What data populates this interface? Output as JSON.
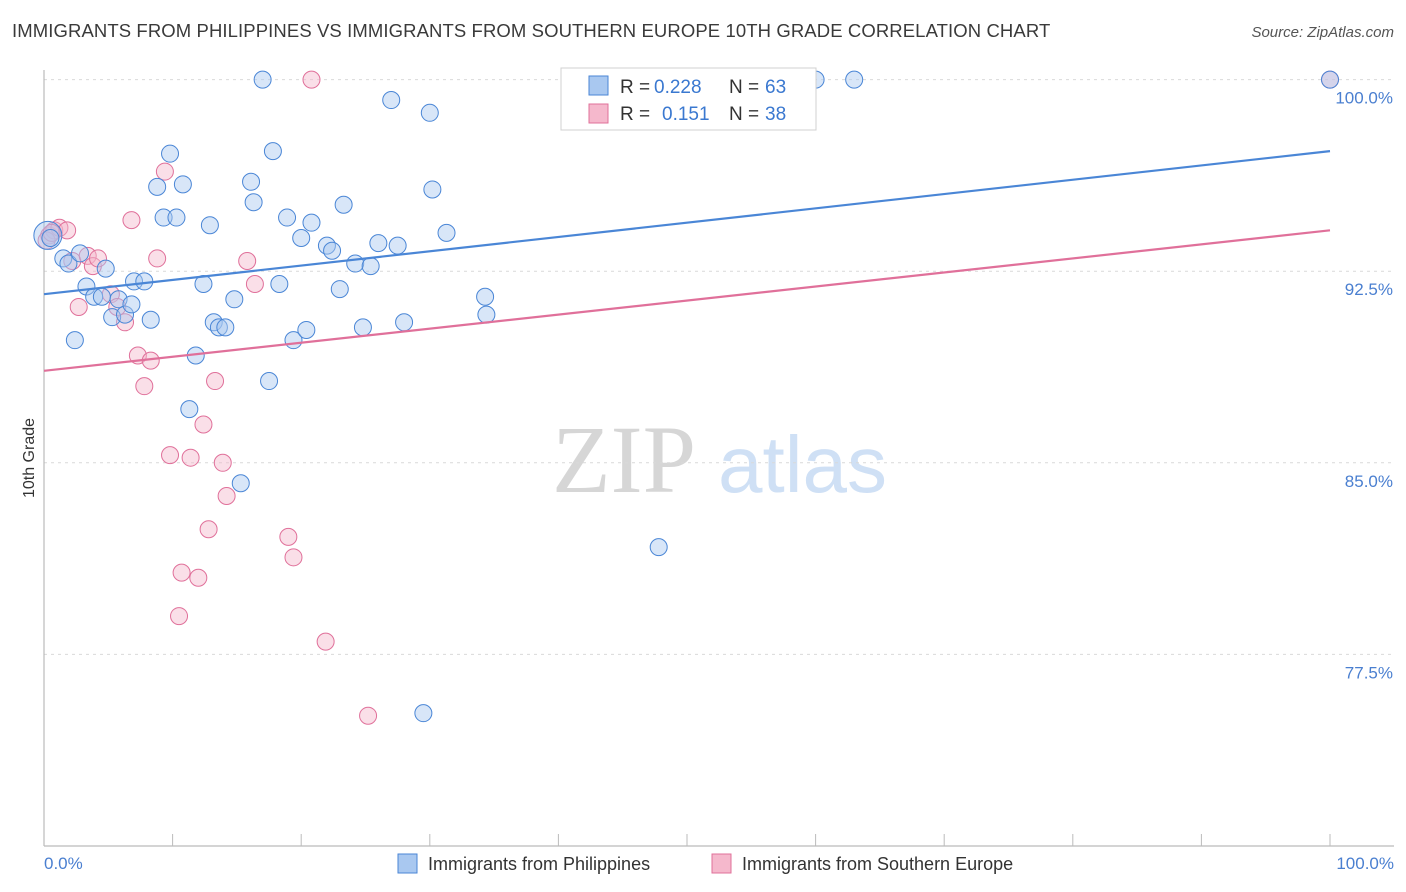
{
  "title": "IMMIGRANTS FROM PHILIPPINES VS IMMIGRANTS FROM SOUTHERN EUROPE 10TH GRADE CORRELATION CHART",
  "source": "Source: ZipAtlas.com",
  "watermark": {
    "zip": "ZIP",
    "atlas": "atlas"
  },
  "colors": {
    "blue": "#4a86d6",
    "blue_fill": "#a9c8f0",
    "pink": "#e0709a",
    "pink_fill": "#f5b8cc",
    "grid": "#d9d9d9"
  },
  "legend": [
    {
      "r_label": "R =",
      "r_value": "0.228",
      "n_label": "N =",
      "n_value": "63"
    },
    {
      "r_label": "R =",
      "r_value": "0.151",
      "n_label": "N =",
      "n_value": "38"
    }
  ],
  "chart_data": {
    "type": "scatter",
    "title": "IMMIGRANTS FROM PHILIPPINES VS IMMIGRANTS FROM SOUTHERN EUROPE 10TH GRADE CORRELATION CHART",
    "xlabel": "",
    "ylabel": "10th Grade",
    "xlim": [
      0,
      100
    ],
    "ylim": [
      70.0,
      100.7
    ],
    "x_tick_labels": [
      "0.0%",
      "100.0%"
    ],
    "y_ticks": [
      {
        "value": 77.5,
        "label": "77.5%"
      },
      {
        "value": 85.0,
        "label": "85.0%"
      },
      {
        "value": 92.5,
        "label": "92.5%"
      },
      {
        "value": 100.0,
        "label": "100.0%"
      }
    ],
    "grid": "horizontal dashed",
    "legend_position": "top-center",
    "series": [
      {
        "name": "Immigrants from Philippines",
        "color": "#4a86d6",
        "trend": {
          "x": [
            0,
            100
          ],
          "y": [
            91.6,
            97.2
          ]
        },
        "points": [
          [
            0.3,
            93.9
          ],
          [
            0.5,
            93.8
          ],
          [
            1.5,
            93.0
          ],
          [
            1.9,
            92.8
          ],
          [
            2.4,
            89.8
          ],
          [
            2.8,
            93.2
          ],
          [
            3.3,
            91.9
          ],
          [
            3.9,
            91.5
          ],
          [
            4.5,
            91.5
          ],
          [
            4.8,
            92.6
          ],
          [
            5.3,
            90.7
          ],
          [
            5.8,
            91.4
          ],
          [
            6.3,
            90.8
          ],
          [
            6.8,
            91.2
          ],
          [
            7.0,
            92.1
          ],
          [
            7.8,
            92.1
          ],
          [
            8.3,
            90.6
          ],
          [
            8.8,
            95.8
          ],
          [
            9.3,
            94.6
          ],
          [
            9.8,
            97.1
          ],
          [
            10.3,
            94.6
          ],
          [
            10.8,
            95.9
          ],
          [
            11.3,
            87.1
          ],
          [
            11.8,
            89.2
          ],
          [
            12.4,
            92.0
          ],
          [
            12.9,
            94.3
          ],
          [
            13.2,
            90.5
          ],
          [
            13.6,
            90.3
          ],
          [
            14.1,
            90.3
          ],
          [
            14.8,
            91.4
          ],
          [
            15.3,
            84.2
          ],
          [
            16.1,
            96.0
          ],
          [
            16.3,
            95.2
          ],
          [
            17.0,
            100.0
          ],
          [
            17.5,
            88.2
          ],
          [
            17.8,
            97.2
          ],
          [
            18.3,
            92.0
          ],
          [
            18.9,
            94.6
          ],
          [
            19.4,
            89.8
          ],
          [
            20.0,
            93.8
          ],
          [
            20.4,
            90.2
          ],
          [
            20.8,
            94.4
          ],
          [
            22.0,
            93.5
          ],
          [
            22.4,
            93.3
          ],
          [
            23.0,
            91.8
          ],
          [
            23.3,
            95.1
          ],
          [
            24.2,
            92.8
          ],
          [
            24.8,
            90.3
          ],
          [
            25.4,
            92.7
          ],
          [
            26.0,
            93.6
          ],
          [
            27.0,
            99.2
          ],
          [
            27.5,
            93.5
          ],
          [
            28.0,
            90.5
          ],
          [
            29.5,
            75.2
          ],
          [
            30.0,
            98.7
          ],
          [
            30.2,
            95.7
          ],
          [
            31.3,
            94.0
          ],
          [
            34.3,
            91.5
          ],
          [
            34.4,
            90.8
          ],
          [
            47.8,
            81.7
          ],
          [
            60.0,
            100.0
          ],
          [
            63.0,
            100.0
          ],
          [
            100.0,
            100.0
          ]
        ]
      },
      {
        "name": "Immigrants from Southern Europe",
        "color": "#e0709a",
        "trend": {
          "x": [
            0,
            100
          ],
          "y": [
            88.6,
            94.1
          ]
        },
        "points": [
          [
            0.4,
            93.9
          ],
          [
            0.8,
            94.1
          ],
          [
            1.2,
            94.2
          ],
          [
            1.8,
            94.1
          ],
          [
            2.2,
            92.9
          ],
          [
            2.7,
            91.1
          ],
          [
            3.4,
            93.1
          ],
          [
            3.8,
            92.7
          ],
          [
            4.2,
            93.0
          ],
          [
            5.2,
            91.6
          ],
          [
            5.7,
            91.1
          ],
          [
            6.3,
            90.5
          ],
          [
            6.8,
            94.5
          ],
          [
            7.3,
            89.2
          ],
          [
            7.8,
            88.0
          ],
          [
            8.3,
            89.0
          ],
          [
            8.8,
            93.0
          ],
          [
            9.4,
            96.4
          ],
          [
            9.8,
            85.3
          ],
          [
            10.5,
            79.0
          ],
          [
            10.7,
            80.7
          ],
          [
            11.4,
            85.2
          ],
          [
            12.0,
            80.5
          ],
          [
            12.4,
            86.5
          ],
          [
            12.8,
            82.4
          ],
          [
            13.3,
            88.2
          ],
          [
            13.9,
            85.0
          ],
          [
            14.2,
            83.7
          ],
          [
            15.8,
            92.9
          ],
          [
            16.4,
            92.0
          ],
          [
            19.0,
            82.1
          ],
          [
            19.4,
            81.3
          ],
          [
            20.8,
            100.0
          ],
          [
            21.9,
            78.0
          ],
          [
            25.2,
            75.1
          ],
          [
            100.0,
            100.0
          ],
          [
            0.2,
            93.7
          ],
          [
            0.6,
            94.0
          ]
        ]
      }
    ]
  },
  "bottom_legend": [
    {
      "label": "Immigrants from Philippines"
    },
    {
      "label": "Immigrants from Southern Europe"
    }
  ]
}
